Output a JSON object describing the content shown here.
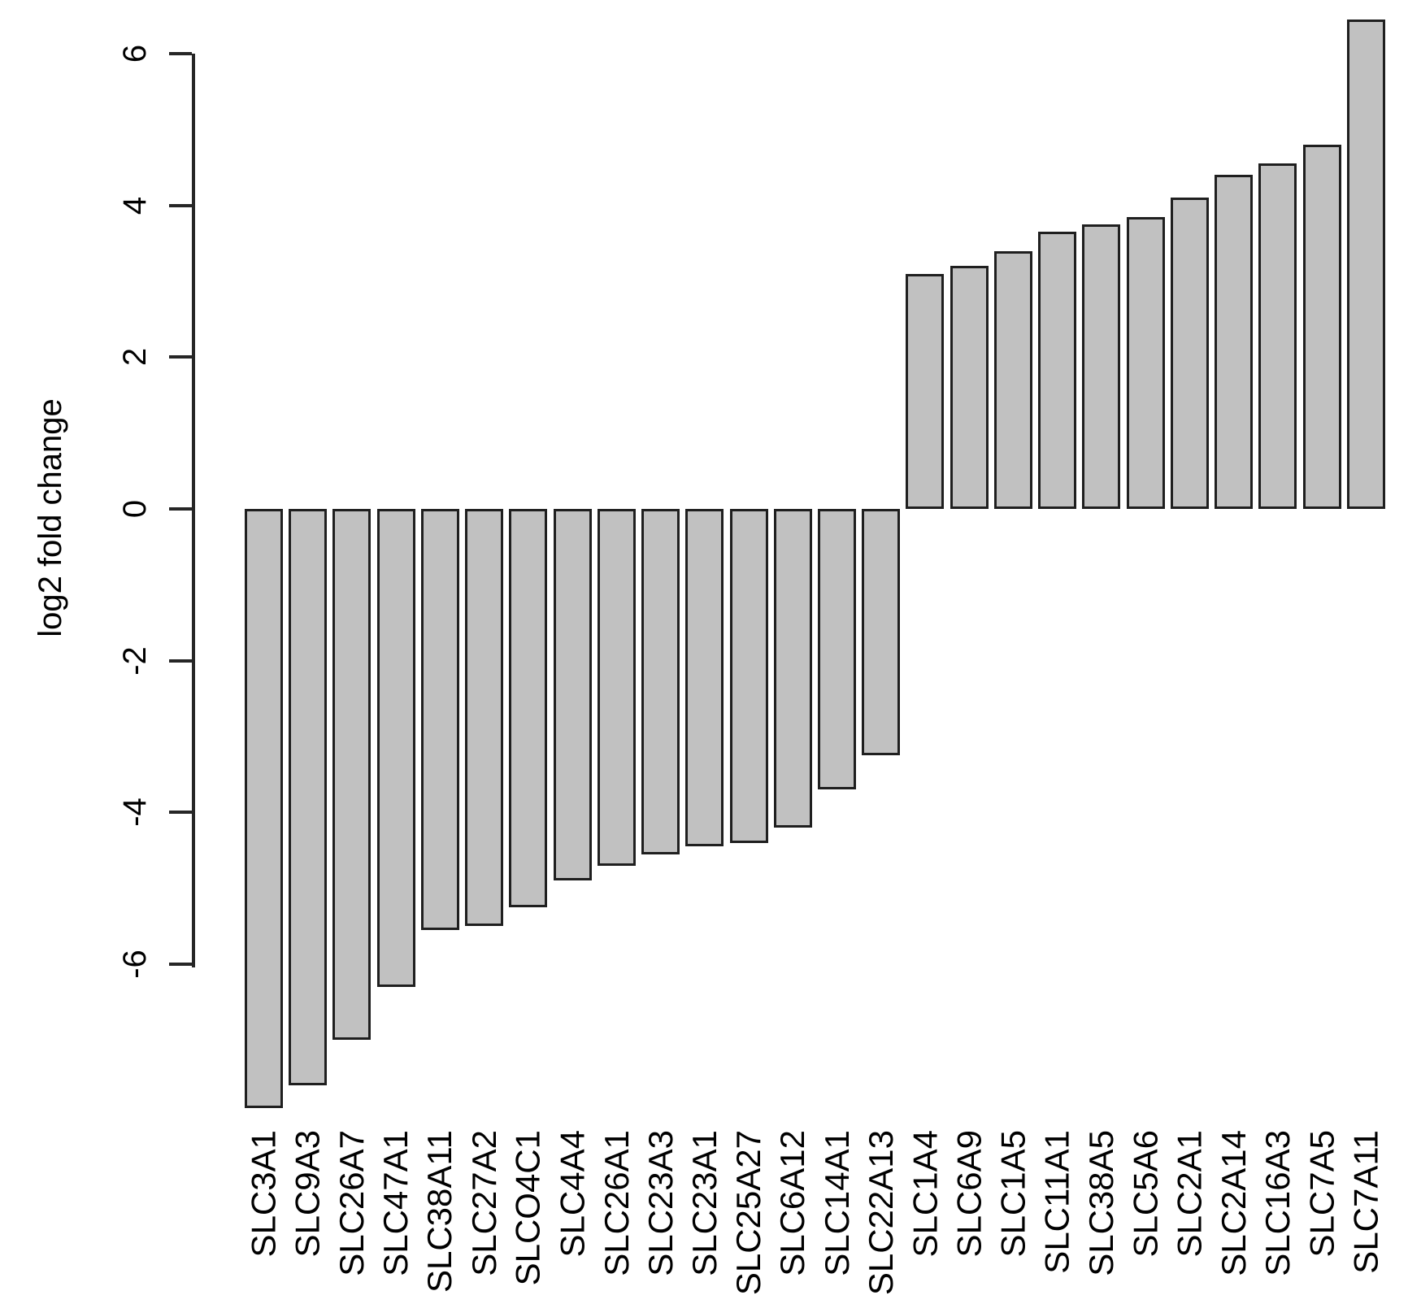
{
  "chart_data": {
    "type": "bar",
    "title": "",
    "xlabel": "",
    "ylabel": "log2 fold change",
    "categories": [
      "SLC3A1",
      "SLC9A3",
      "SLC26A7",
      "SLC47A1",
      "SLC38A11",
      "SLC27A2",
      "SLCO4C1",
      "SLC4A4",
      "SLC26A1",
      "SLC23A3",
      "SLC23A1",
      "SLC25A27",
      "SLC6A12",
      "SLC14A1",
      "SLC22A13",
      "SLC1A4",
      "SLC6A9",
      "SLC1A5",
      "SLC11A1",
      "SLC38A5",
      "SLC5A6",
      "SLC2A1",
      "SLC2A14",
      "SLC16A3",
      "SLC7A5",
      "SLC7A11"
    ],
    "values": [
      -7.9,
      -7.6,
      -7.0,
      -6.3,
      -5.55,
      -5.5,
      -5.25,
      -4.9,
      -4.7,
      -4.55,
      -4.45,
      -4.4,
      -4.2,
      -3.7,
      -3.25,
      3.1,
      3.2,
      3.4,
      3.65,
      3.75,
      3.85,
      4.1,
      4.4,
      4.55,
      4.8,
      6.45
    ],
    "ytick_labels": [
      "6",
      "4",
      "2",
      "0",
      "-2",
      "-4",
      "-6"
    ],
    "ytick_values": [
      6,
      4,
      2,
      0,
      -2,
      -4,
      -6
    ],
    "ylim": [
      -8.5,
      6.5
    ],
    "grid": false,
    "legend": "none",
    "orientation": "vertical",
    "x_label_rotation_deg": -90,
    "bar_fill_color": "#c1c1c1",
    "bar_border_color": "#1f1f1f",
    "axis_color": "#262626",
    "background_color": "#ffffff"
  }
}
